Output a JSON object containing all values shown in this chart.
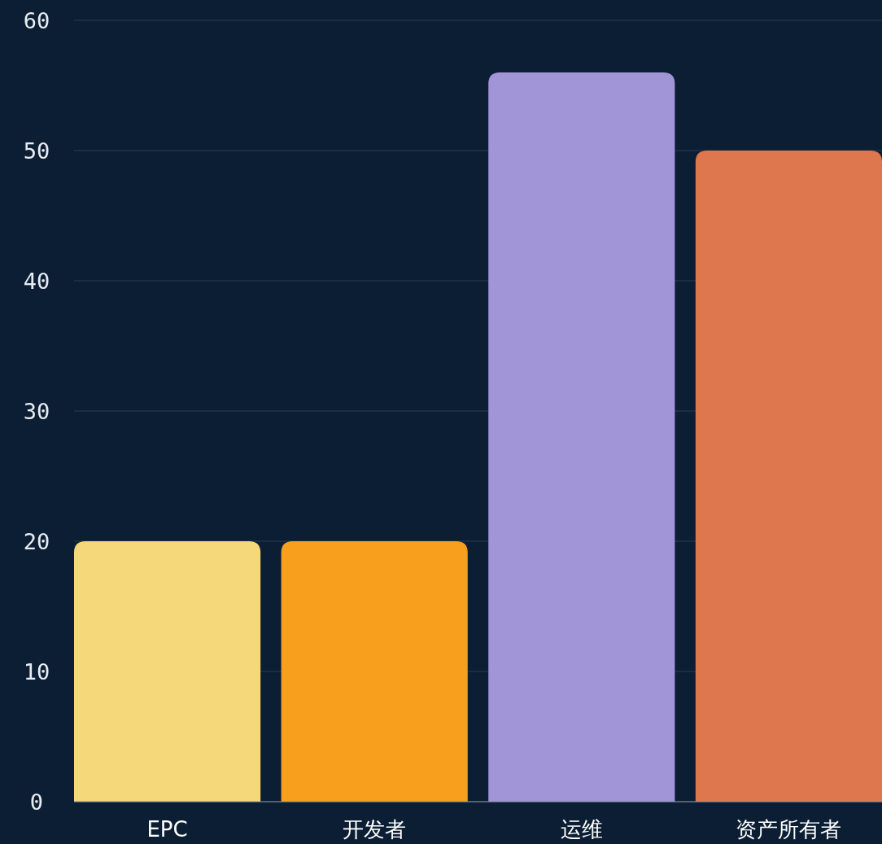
{
  "chart_data": {
    "type": "bar",
    "categories": [
      "EPC",
      "开发者",
      "运维",
      "资产所有者"
    ],
    "values": [
      20,
      20,
      56,
      50
    ],
    "colors": [
      "#f5d879",
      "#f89f1d",
      "#a195d7",
      "#de764e"
    ],
    "ylim": [
      0,
      60
    ],
    "yticks": [
      0,
      10,
      20,
      30,
      40,
      50,
      60
    ],
    "grid": "y"
  }
}
